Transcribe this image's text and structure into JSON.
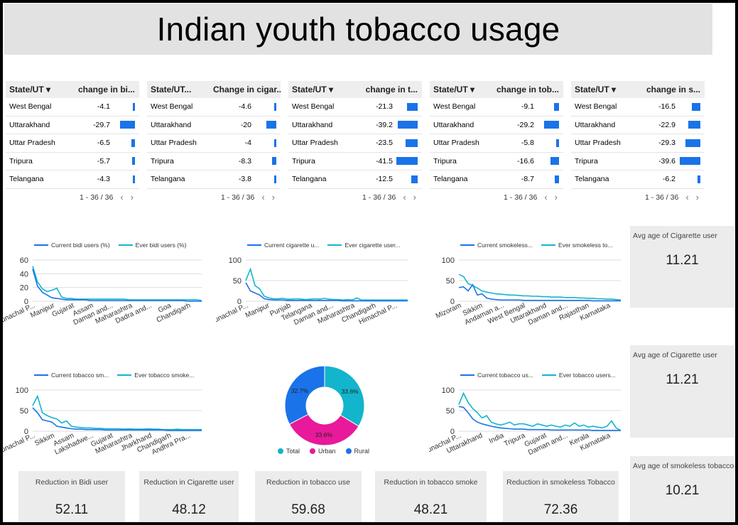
{
  "title": "Indian youth tobacco usage",
  "colors": {
    "dark_blue": "#1a73e8",
    "light_blue": "#12b5cb",
    "pink": "#e8199a",
    "bar": "#1a73e8",
    "card_bg": "#ececec"
  },
  "tables": [
    {
      "col1": "State/UT",
      "col2": "change in bi...",
      "sortable": true,
      "rows": [
        {
          "state": "West Bengal",
          "value": "-4.1",
          "num": -4.1
        },
        {
          "state": "Uttarakhand",
          "value": "-29.7",
          "num": -29.7
        },
        {
          "state": "Uttar Pradesh",
          "value": "-6.5",
          "num": -6.5
        },
        {
          "state": "Tripura",
          "value": "-5.7",
          "num": -5.7
        },
        {
          "state": "Telangana",
          "value": "-4.3",
          "num": -4.3
        }
      ],
      "pager": "1 - 36 / 36"
    },
    {
      "col1": "State/UT...",
      "col2": "Change in cigar...",
      "sortable": false,
      "rows": [
        {
          "state": "West Bengal",
          "value": "-4.6",
          "num": -4.6
        },
        {
          "state": "Uttarakhand",
          "value": "-20",
          "num": -20
        },
        {
          "state": "Uttar Pradesh",
          "value": "-4",
          "num": -4
        },
        {
          "state": "Tripura",
          "value": "-8.3",
          "num": -8.3
        },
        {
          "state": "Telangana",
          "value": "-3.8",
          "num": -3.8
        }
      ],
      "pager": "1 - 36 / 36"
    },
    {
      "col1": "State/UT",
      "col2": "change in t...",
      "sortable": true,
      "rows": [
        {
          "state": "West Bengal",
          "value": "-21.3",
          "num": -21.3
        },
        {
          "state": "Uttarakhand",
          "value": "-39.2",
          "num": -39.2
        },
        {
          "state": "Uttar Pradesh",
          "value": "-23.5",
          "num": -23.5
        },
        {
          "state": "Tripura",
          "value": "-41.5",
          "num": -41.5
        },
        {
          "state": "Telangana",
          "value": "-12.5",
          "num": -12.5
        }
      ],
      "pager": "1 - 36 / 36"
    },
    {
      "col1": "State/UT",
      "col2": "change in tob...",
      "sortable": true,
      "rows": [
        {
          "state": "West Bengal",
          "value": "-9.1",
          "num": -9.1
        },
        {
          "state": "Uttarakhand",
          "value": "-29.2",
          "num": -29.2
        },
        {
          "state": "Uttar Pradesh",
          "value": "-5.8",
          "num": -5.8
        },
        {
          "state": "Tripura",
          "value": "-16.6",
          "num": -16.6
        },
        {
          "state": "Telangana",
          "value": "-8.7",
          "num": -8.7
        }
      ],
      "pager": "1 - 36 / 36"
    },
    {
      "col1": "State/UT",
      "col2": "change in s...",
      "sortable": true,
      "rows": [
        {
          "state": "West Bengal",
          "value": "-16.5",
          "num": -16.5
        },
        {
          "state": "Uttarakhand",
          "value": "-22.9",
          "num": -22.9
        },
        {
          "state": "Uttar Pradesh",
          "value": "-29.3",
          "num": -29.3
        },
        {
          "state": "Tripura",
          "value": "-39.6",
          "num": -39.6
        },
        {
          "state": "Telangana",
          "value": "-6.2",
          "num": -6.2
        }
      ],
      "pager": "1 - 36 / 36"
    }
  ],
  "chart_data": [
    {
      "id": "bidi",
      "type": "line",
      "ylim": [
        0,
        60
      ],
      "yticks": [
        0,
        20,
        40,
        60
      ],
      "xticks": [
        "Arunachal P...",
        "Manipur",
        "Gujarat",
        "Assam",
        "Daman and...",
        "Maharashtra",
        "Dadra and...",
        "Goa",
        "Chandigarh"
      ],
      "series": [
        {
          "name": "Current bidi users (%)",
          "values": [
            47,
            22,
            13,
            9,
            5,
            4,
            3,
            2,
            2,
            2,
            2,
            2,
            1,
            1,
            1,
            1,
            1,
            1,
            1,
            1,
            1,
            1,
            1,
            1,
            1,
            1,
            1,
            1,
            1,
            1,
            1,
            1,
            0,
            0,
            0,
            0
          ]
        },
        {
          "name": "Ever bidi users (%)",
          "values": [
            51,
            28,
            18,
            14,
            16,
            19,
            6,
            4,
            4,
            3,
            3,
            3,
            3,
            3,
            3,
            3,
            3,
            3,
            3,
            3,
            2,
            2,
            2,
            2,
            2,
            2,
            2,
            2,
            2,
            2,
            2,
            2,
            2,
            2,
            2,
            1
          ]
        }
      ]
    },
    {
      "id": "cigarette",
      "type": "line",
      "ylim": [
        0,
        100
      ],
      "yticks": [
        0,
        50,
        100
      ],
      "xticks": [
        "Arunachal P...",
        "Manipur",
        "Punjab",
        "Telangana",
        "Daman and...",
        "Maharashtra",
        "Chandigarh",
        "Himachal P..."
      ],
      "series": [
        {
          "name": "Current cigarette u...",
          "values": [
            45,
            25,
            20,
            15,
            6,
            4,
            3,
            3,
            3,
            2,
            2,
            2,
            2,
            2,
            2,
            2,
            2,
            2,
            2,
            2,
            2,
            1,
            1,
            1,
            1,
            1,
            1,
            1,
            1,
            1,
            1,
            1,
            1,
            1,
            1,
            1
          ]
        },
        {
          "name": "Ever cigarette user...",
          "values": [
            50,
            78,
            38,
            30,
            12,
            8,
            6,
            6,
            7,
            5,
            5,
            6,
            5,
            4,
            5,
            6,
            5,
            7,
            5,
            4,
            4,
            3,
            4,
            3,
            8,
            3,
            3,
            3,
            3,
            3,
            3,
            3,
            3,
            3,
            3,
            3
          ]
        }
      ]
    },
    {
      "id": "smokeless",
      "type": "line",
      "ylim": [
        0,
        100
      ],
      "yticks": [
        0,
        50,
        100
      ],
      "xticks": [
        "Mizoram",
        "Sikkim",
        "Andaman a...",
        "West Bengal",
        "Uttarakhand",
        "Daman and...",
        "Rajasthan",
        "Karnataka"
      ],
      "series": [
        {
          "name": "Current smokeless...",
          "values": [
            33,
            35,
            25,
            40,
            15,
            18,
            8,
            5,
            4,
            3,
            3,
            3,
            3,
            3,
            2,
            2,
            2,
            2,
            2,
            2,
            2,
            2,
            2,
            2,
            2,
            2,
            2,
            2,
            2,
            1,
            1,
            1,
            1,
            1,
            1,
            1
          ]
        },
        {
          "name": "Ever smokeless to...",
          "values": [
            65,
            60,
            43,
            38,
            32,
            25,
            22,
            20,
            18,
            17,
            16,
            15,
            15,
            14,
            13,
            13,
            12,
            12,
            11,
            11,
            10,
            10,
            10,
            9,
            9,
            9,
            8,
            8,
            7,
            7,
            6,
            6,
            5,
            5,
            4,
            3
          ]
        }
      ]
    },
    {
      "id": "tobacco-smoke",
      "type": "line",
      "ylim": [
        0,
        100
      ],
      "yticks": [
        0,
        50,
        100
      ],
      "xticks": [
        "Arunachal P...",
        "Sikkim",
        "Assam",
        "Lakshadwe...",
        "Gujarat",
        "Maharashtra",
        "Jharkhand",
        "Chandigarh",
        "Andhra Pra..."
      ],
      "series": [
        {
          "name": "Current tobacco sm...",
          "values": [
            57,
            45,
            28,
            25,
            22,
            12,
            10,
            8,
            6,
            5,
            5,
            4,
            4,
            4,
            4,
            3,
            3,
            3,
            3,
            3,
            3,
            3,
            3,
            3,
            3,
            3,
            3,
            3,
            2,
            2,
            2,
            2,
            2,
            2,
            2,
            2
          ]
        },
        {
          "name": "Ever tobacco smoke...",
          "values": [
            62,
            85,
            45,
            38,
            33,
            30,
            20,
            25,
            12,
            10,
            9,
            8,
            8,
            7,
            7,
            6,
            6,
            6,
            6,
            5,
            6,
            5,
            5,
            5,
            6,
            5,
            5,
            4,
            4,
            4,
            5,
            4,
            4,
            4,
            4,
            4
          ]
        }
      ]
    },
    {
      "id": "pie",
      "type": "pie",
      "slices": [
        {
          "name": "Total",
          "value": 33.6,
          "label": "33.6%"
        },
        {
          "name": "Urban",
          "value": 33.6,
          "label": "33.6%"
        },
        {
          "name": "Rural",
          "value": 32.7,
          "label": "32.7%"
        }
      ]
    },
    {
      "id": "tobacco-use",
      "type": "line",
      "ylim": [
        0,
        100
      ],
      "yticks": [
        0,
        50,
        100
      ],
      "xticks": [
        "Arunachal P...",
        "Uttarakhand",
        "India",
        "Tripura",
        "Gujarat",
        "Daman and...",
        "Kerala",
        "Karnataka"
      ],
      "series": [
        {
          "name": "Current tobacco us...",
          "values": [
            60,
            58,
            45,
            30,
            22,
            18,
            15,
            12,
            10,
            8,
            7,
            6,
            5,
            5,
            5,
            4,
            4,
            4,
            4,
            4,
            3,
            3,
            3,
            3,
            3,
            3,
            3,
            3,
            3,
            2,
            2,
            2,
            2,
            2,
            2,
            2
          ]
        },
        {
          "name": "Ever tobacco users...",
          "values": [
            65,
            92,
            70,
            55,
            45,
            32,
            38,
            22,
            18,
            15,
            18,
            22,
            15,
            18,
            18,
            15,
            12,
            18,
            15,
            12,
            15,
            12,
            10,
            15,
            12,
            20,
            12,
            15,
            10,
            12,
            10,
            8,
            12,
            25,
            8,
            2
          ]
        }
      ]
    }
  ],
  "scorecards": [
    {
      "label": "Reduction in Bidi user",
      "value": "52.11"
    },
    {
      "label": "Reduction in Cigarette user",
      "value": "48.12"
    },
    {
      "label": "Reduction in tobacco use",
      "value": "59.68"
    },
    {
      "label": "Reduction in tobacco smoke",
      "value": "48.21"
    },
    {
      "label": "Reduction in smokeless Tobacco",
      "value": "72.36"
    }
  ],
  "sidecards": [
    {
      "label": "Avg age of Cigarette user",
      "value": "11.21"
    },
    {
      "label": "Avg age of Cigarette user",
      "value": "11.21"
    },
    {
      "label": "Avg age of smokeless tobacco",
      "value": "10.21"
    }
  ]
}
